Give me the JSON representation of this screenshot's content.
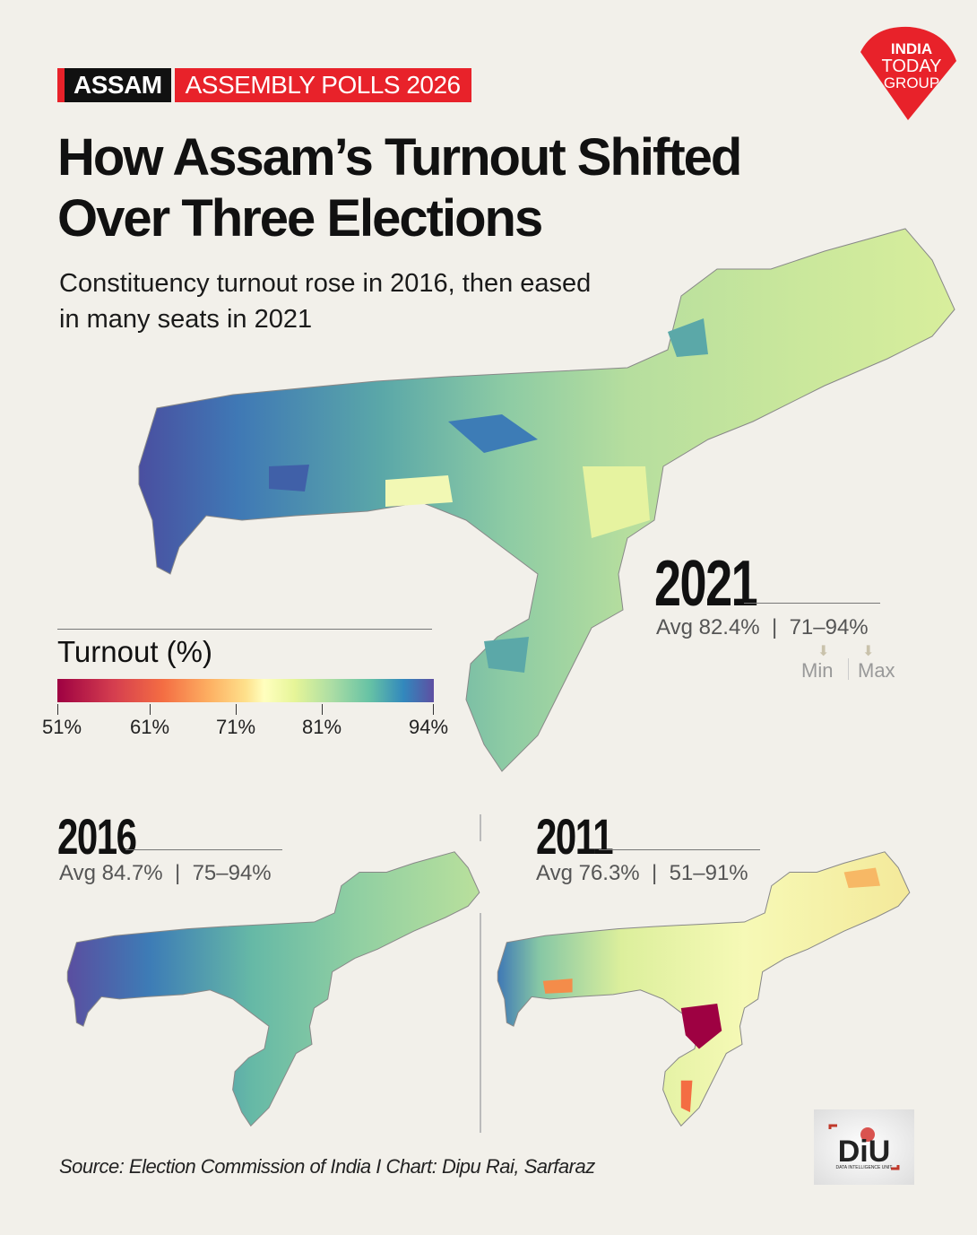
{
  "header": {
    "state_badge": "ASSAM",
    "event_badge": "ASSEMBLY POLLS 2026",
    "title": "How Assam’s Turnout Shifted Over Three Elections",
    "subtitle": "Constituency turnout rose in 2016, then eased in many seats in 2021",
    "brand_logo": "INDIA TODAY GROUP"
  },
  "legend": {
    "title": "Turnout (%)",
    "scale": "Spectral, red (low) to purple (high)",
    "ticks": [
      "51%",
      "61%",
      "71%",
      "81%",
      "94%"
    ],
    "colors": [
      "#9e0142",
      "#f46d43",
      "#ffffbf",
      "#66c2a5",
      "#5e4fa2"
    ]
  },
  "maps": [
    {
      "year": "2021",
      "avg": "Avg 82.4%",
      "range": "71–94%",
      "min_label": "Min",
      "max_label": "Max"
    },
    {
      "year": "2016",
      "avg": "Avg 84.7%",
      "range": "75–94%"
    },
    {
      "year": "2011",
      "avg": "Avg 76.3%",
      "range": "51–91%"
    }
  ],
  "footer": {
    "source": "Source: Election Commission of India I Chart: Dipu Rai, Sarfaraz",
    "diu_logo": "DiU DATA INTELLIGENCE UNIT"
  }
}
